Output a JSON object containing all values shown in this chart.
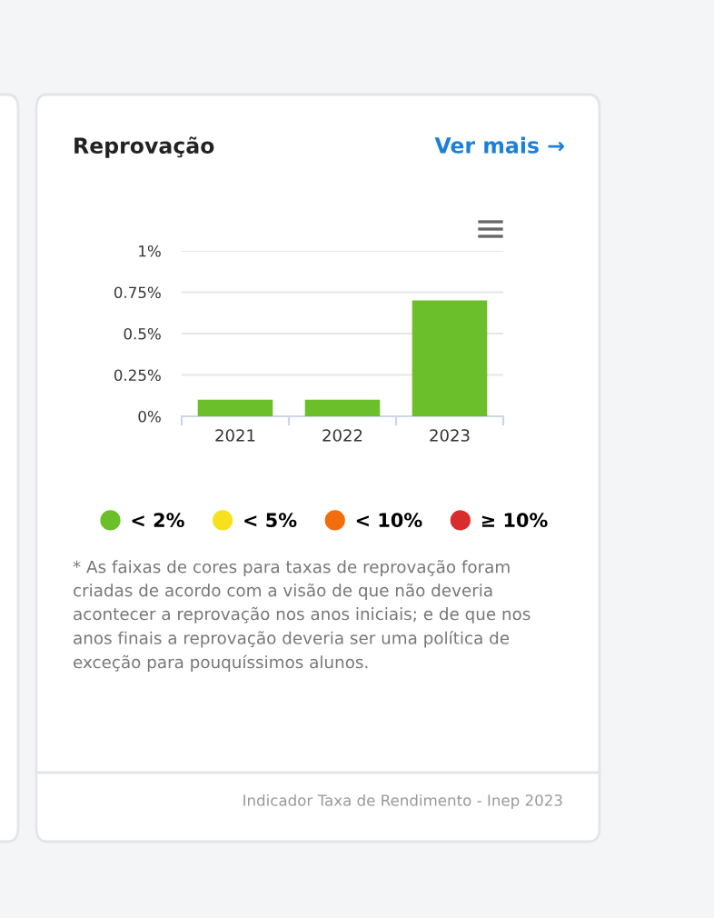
{
  "chart_data": {
    "type": "bar",
    "title": "Reprovação",
    "categories": [
      "2021",
      "2022",
      "2023"
    ],
    "series": [
      {
        "name": "< 2%",
        "color": "#6abf2a",
        "values": [
          0.1,
          0.1,
          0.7
        ]
      },
      {
        "name": "< 5%",
        "color": "#f7e11d",
        "values": [
          null,
          null,
          null
        ]
      },
      {
        "name": "< 10%",
        "color": "#f26d0c",
        "values": [
          null,
          null,
          null
        ]
      },
      {
        "name": "≥ 10%",
        "color": "#d92d2d",
        "values": [
          null,
          null,
          null
        ]
      }
    ],
    "ylim": [
      0,
      1
    ],
    "yticks": [
      {
        "value": 0,
        "label": "0%"
      },
      {
        "value": 0.25,
        "label": "0.25%"
      },
      {
        "value": 0.5,
        "label": "0.5%"
      },
      {
        "value": 0.75,
        "label": "0.75%"
      },
      {
        "value": 1,
        "label": "1%"
      }
    ],
    "grid": "y",
    "legend": "bottom",
    "annotations": [
      "Ver mais →",
      "* As faixas de cores para taxas de reprovação foram\ncriadas de acordo com a visão de que não deveria\nacontecer a reprovação nos anos iniciais; e de que nos\nanos finais a reprovação deveria ser uma política de\nexceção para pouquíssimos alunos.",
      "Indicador Taxa de Rendimento - Inep 2023"
    ]
  }
}
